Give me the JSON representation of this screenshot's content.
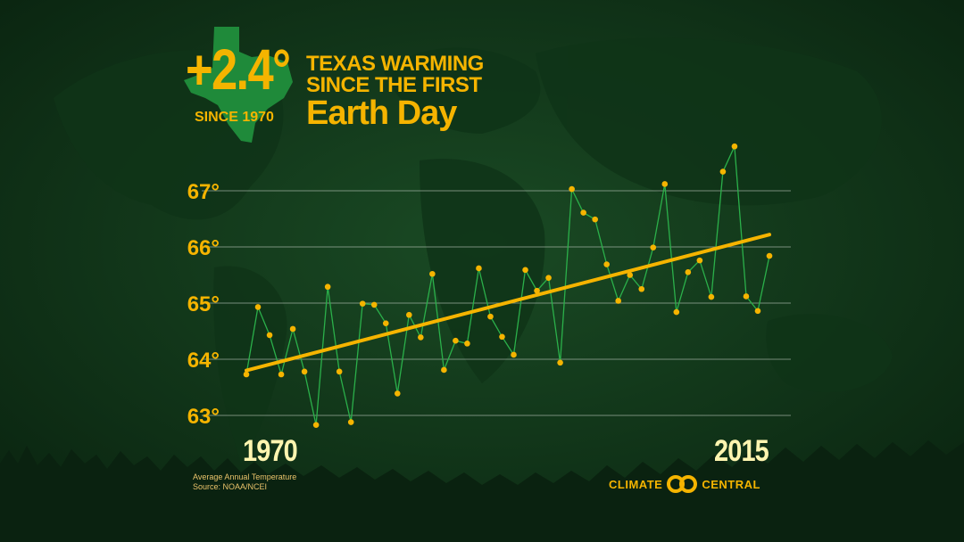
{
  "headline": {
    "big_number": "+2.4°",
    "since": "SINCE 1970",
    "title_line1": "TEXAS WARMING",
    "title_line2": "SINCE THE FIRST",
    "title_line3": "Earth Day"
  },
  "footer": {
    "note1": "Average Annual Temperature",
    "note2": "Source: NOAA/NCEI",
    "logo_left": "CLIMATE",
    "logo_right": "CENTRAL"
  },
  "colors": {
    "background": "#0c2a14",
    "accent": "#f5b400",
    "series_line": "#2bb04a",
    "trend_line": "#f5b400",
    "grid": "#c9d2c9"
  },
  "chart_data": {
    "type": "line",
    "title": "TEXAS WARMING SINCE THE FIRST Earth Day",
    "start_label": "1970",
    "end_label": "2015",
    "ylim": [
      63,
      68
    ],
    "yticks": [
      63,
      64,
      65,
      66,
      67
    ],
    "ytick_labels": [
      "63°",
      "64°",
      "65°",
      "66°",
      "67°"
    ],
    "grid": true,
    "series": [
      {
        "x": [
          1970,
          1971,
          1972,
          1973,
          1974,
          1975,
          1976,
          1977,
          1978,
          1979,
          1980,
          1981,
          1982,
          1983,
          1984,
          1985,
          1986,
          1987,
          1988,
          1989,
          1990,
          1991,
          1992,
          1993,
          1994,
          1995,
          1996,
          1997,
          1998,
          1999,
          2000,
          2001,
          2002,
          2003,
          2004,
          2005,
          2006,
          2007,
          2008,
          2009,
          2010,
          2011,
          2012,
          2013,
          2014,
          2015
        ],
        "values": [
          63.73,
          64.93,
          64.43,
          63.73,
          64.54,
          63.78,
          62.83,
          65.29,
          63.78,
          62.88,
          64.99,
          64.97,
          64.64,
          63.39,
          64.79,
          64.39,
          65.52,
          63.81,
          64.33,
          64.28,
          65.62,
          64.76,
          64.4,
          64.08,
          65.59,
          65.22,
          65.45,
          63.94,
          67.03,
          66.61,
          66.49,
          65.69,
          65.04,
          65.5,
          65.25,
          65.99,
          67.12,
          64.84,
          65.55,
          65.76,
          65.11,
          67.34,
          67.79,
          65.12,
          64.86,
          65.84
        ]
      }
    ],
    "trend": {
      "x": [
        1970,
        2015
      ],
      "values": [
        63.8,
        66.22
      ]
    }
  }
}
